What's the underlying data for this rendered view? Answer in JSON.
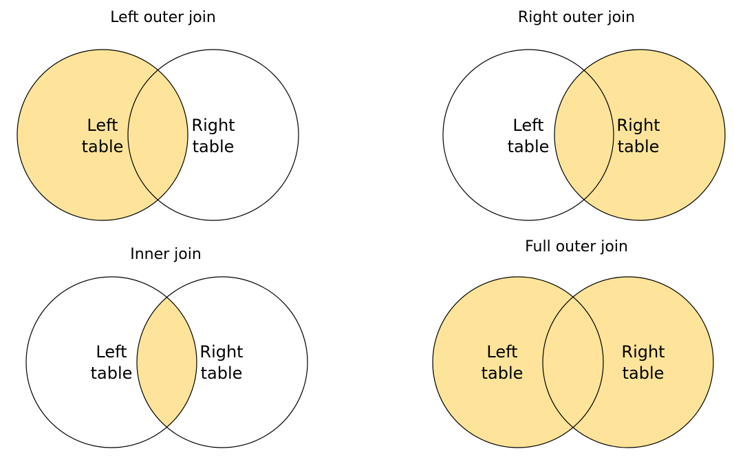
{
  "fill_color": "#FDE49A",
  "stroke_color": "#000000",
  "background": "#FFFFFF",
  "panels": [
    {
      "title": "Left outer join",
      "left_line1": "Left",
      "left_line2": "table",
      "right_line1": "Right",
      "right_line2": "table",
      "highlight": "left"
    },
    {
      "title": "Right outer join",
      "left_line1": "Left",
      "left_line2": "table",
      "right_line1": "Right",
      "right_line2": "table",
      "highlight": "right"
    },
    {
      "title": "Inner join",
      "left_line1": "Left",
      "left_line2": "table",
      "right_line1": "Right",
      "right_line2": "table",
      "highlight": "intersection"
    },
    {
      "title": "Full outer join",
      "left_line1": "Left",
      "left_line2": "table",
      "right_line1": "Right",
      "right_line2": "table",
      "highlight": "both"
    }
  ]
}
